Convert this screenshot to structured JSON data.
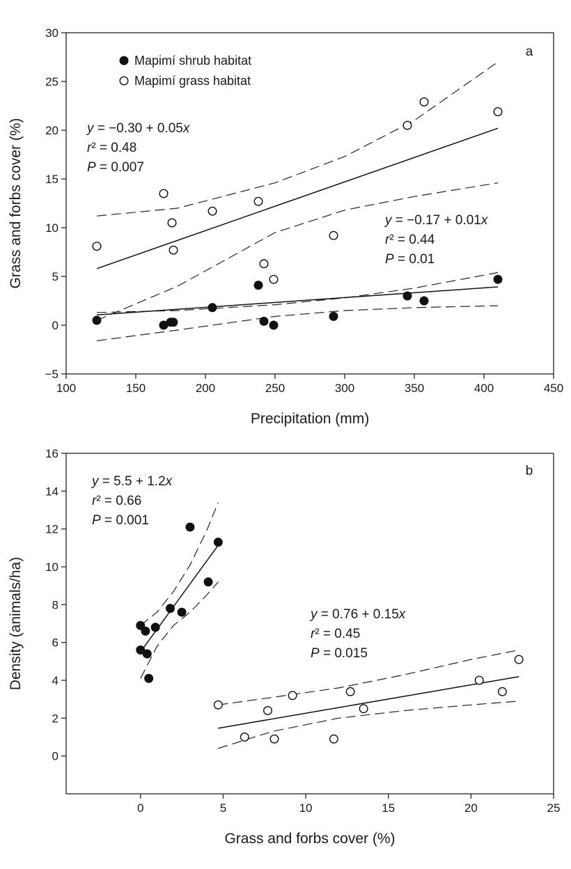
{
  "chart_data": [
    {
      "id": "a",
      "type": "scatter",
      "panel_label": "a",
      "xlabel": "Precipitation (mm)",
      "ylabel": "Grass and forbs cover (%)",
      "xlim": [
        100,
        450
      ],
      "ylim": [
        -5,
        30
      ],
      "xticks": [
        100,
        150,
        200,
        250,
        300,
        350,
        400,
        450
      ],
      "yticks": [
        -5,
        0,
        5,
        10,
        15,
        20,
        25,
        30
      ],
      "legend_position": "top-left",
      "grid": false,
      "series": [
        {
          "name": "Mapimí shrub habitat",
          "marker": "filled-circle",
          "points": [
            [
              122,
              0.5
            ],
            [
              170,
              0
            ],
            [
              175,
              0.3
            ],
            [
              177,
              0.3
            ],
            [
              205,
              1.8
            ],
            [
              238,
              4.1
            ],
            [
              242,
              0.4
            ],
            [
              249,
              0
            ],
            [
              292,
              0.9
            ],
            [
              345,
              3.0
            ],
            [
              357,
              2.5
            ],
            [
              410,
              4.7
            ]
          ],
          "fit": {
            "intercept": -0.17,
            "slope": 0.01,
            "x_range": [
              122,
              410
            ]
          },
          "ci_band": {
            "x": [
              122,
              180,
              250,
              300,
              350,
              410
            ],
            "upper": [
              1.3,
              1.5,
              2.1,
              2.8,
              3.8,
              5.4
            ],
            "lower": [
              -1.6,
              -0.5,
              0.9,
              1.5,
              1.8,
              2.0
            ]
          },
          "equation": {
            "lines": [
              "y = −0.17 + 0.01x",
              "r² = 0.44",
              "P = 0.01"
            ]
          }
        },
        {
          "name": "Mapimí grass habitat",
          "marker": "open-circle",
          "points": [
            [
              122,
              8.1
            ],
            [
              170,
              13.5
            ],
            [
              176,
              10.5
            ],
            [
              177,
              7.7
            ],
            [
              205,
              11.7
            ],
            [
              238,
              12.7
            ],
            [
              242,
              6.3
            ],
            [
              249,
              4.7
            ],
            [
              292,
              9.2
            ],
            [
              345,
              20.5
            ],
            [
              357,
              22.9
            ],
            [
              410,
              21.9
            ]
          ],
          "fit": {
            "intercept": -0.3,
            "slope": 0.05,
            "x_range": [
              122,
              410
            ]
          },
          "ci_band": {
            "x": [
              122,
              180,
              250,
              300,
              350,
              410
            ],
            "upper": [
              11.2,
              12.0,
              14.6,
              17.3,
              21.0,
              27.0
            ],
            "lower": [
              0.5,
              4.0,
              9.5,
              11.8,
              13.2,
              14.6
            ]
          },
          "equation": {
            "lines": [
              "y = −0.30 + 0.05x",
              "r² = 0.48",
              "P = 0.007"
            ]
          }
        }
      ]
    },
    {
      "id": "b",
      "type": "scatter",
      "panel_label": "b",
      "xlabel": "Grass and forbs cover (%)",
      "ylabel": "Density (animals/ha)",
      "xlim": [
        -4.5,
        25
      ],
      "ylim": [
        -2,
        16
      ],
      "xticks": [
        0,
        5,
        10,
        15,
        20,
        25
      ],
      "yticks": [
        0,
        2,
        4,
        6,
        8,
        10,
        12,
        14,
        16
      ],
      "grid": false,
      "series": [
        {
          "marker": "filled-circle",
          "points": [
            [
              0.0,
              6.9
            ],
            [
              0.0,
              5.6
            ],
            [
              0.3,
              6.6
            ],
            [
              0.4,
              5.4
            ],
            [
              0.5,
              4.1
            ],
            [
              0.9,
              6.8
            ],
            [
              1.8,
              7.8
            ],
            [
              2.5,
              7.6
            ],
            [
              3.0,
              12.1
            ],
            [
              4.1,
              9.2
            ],
            [
              4.7,
              11.3
            ]
          ],
          "fit": {
            "intercept": 5.5,
            "slope": 1.2,
            "x_range": [
              0,
              4.7
            ]
          },
          "ci_band": {
            "x": [
              0,
              1,
              2,
              3,
              4,
              4.7
            ],
            "upper": [
              6.9,
              7.6,
              8.7,
              10.1,
              11.9,
              13.4
            ],
            "lower": [
              4.1,
              5.8,
              6.9,
              7.6,
              8.5,
              9.2
            ]
          },
          "equation": {
            "lines": [
              "y = 5.5 + 1.2x",
              "r² = 0.66",
              "P = 0.001"
            ]
          }
        },
        {
          "marker": "open-circle",
          "points": [
            [
              4.7,
              2.7
            ],
            [
              6.3,
              1.0
            ],
            [
              7.7,
              2.4
            ],
            [
              8.1,
              0.9
            ],
            [
              9.2,
              3.2
            ],
            [
              11.7,
              0.9
            ],
            [
              12.7,
              3.4
            ],
            [
              13.5,
              2.5
            ],
            [
              20.5,
              4.0
            ],
            [
              21.9,
              3.4
            ],
            [
              22.9,
              5.1
            ]
          ],
          "fit": {
            "intercept": 0.76,
            "slope": 0.15,
            "x_range": [
              4.7,
              22.9
            ]
          },
          "ci_band": {
            "x": [
              4.7,
              8,
              12,
              16,
              20,
              22.9
            ],
            "upper": [
              2.7,
              3.1,
              3.6,
              4.3,
              5.1,
              5.6
            ],
            "lower": [
              0.4,
              1.3,
              2.0,
              2.4,
              2.7,
              2.9
            ]
          },
          "equation": {
            "lines": [
              "y = 0.76 + 0.15x",
              "r² = 0.45",
              "P = 0.015"
            ]
          }
        }
      ]
    }
  ]
}
